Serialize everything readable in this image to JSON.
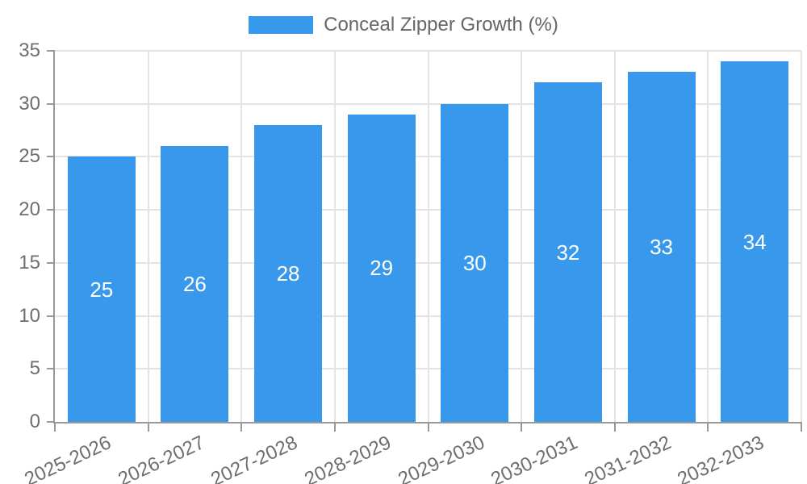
{
  "chart_data": {
    "type": "bar",
    "title": "Conceal Zipper Growth (%)",
    "categories": [
      "2025-2026",
      "2026-2027",
      "2027-2028",
      "2028-2029",
      "2029-2030",
      "2030-2031",
      "2031-2032",
      "2032-2033"
    ],
    "values": [
      25,
      26,
      28,
      29,
      30,
      32,
      33,
      34
    ],
    "xlabel": "",
    "ylabel": "",
    "ylim": [
      0,
      35
    ],
    "yticks": [
      0,
      5,
      10,
      15,
      20,
      25,
      30,
      35
    ],
    "grid": "on",
    "legend_position": "top-center",
    "value_label_position": "center-inside",
    "x_label_rotation_deg": -25,
    "bar_color": "#3899EC",
    "value_label_color": "#ffffff",
    "grid_color": "#e3e3e3",
    "axis_color": "#999999",
    "tick_label_color": "#6e6e6e",
    "legend_text_color": "#666666"
  }
}
